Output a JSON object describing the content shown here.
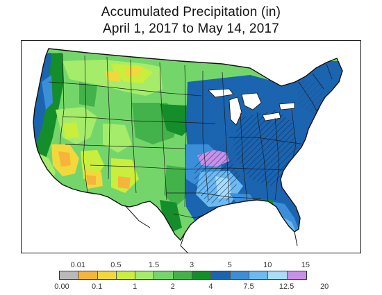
{
  "title": {
    "line1": "Accumulated Precipitation (in)",
    "line2": "April 1, 2017 to May 14, 2017"
  },
  "legend": {
    "bins": [
      {
        "color": "#b9b9b9"
      },
      {
        "color": "#f6b43c"
      },
      {
        "color": "#f3d83c"
      },
      {
        "color": "#c9ee3c"
      },
      {
        "color": "#a4ec6a"
      },
      {
        "color": "#74d66a"
      },
      {
        "color": "#44b24a"
      },
      {
        "color": "#148e2a"
      },
      {
        "color": "#1a64b0"
      },
      {
        "color": "#3a8fd8"
      },
      {
        "color": "#6cbaf0"
      },
      {
        "color": "#a9dcf8"
      },
      {
        "color": "#c890e8"
      }
    ],
    "upper_ticks": [
      "0.01",
      "0.5",
      "1.5",
      "3",
      "5",
      "10",
      "15"
    ],
    "lower_ticks": [
      "0.00",
      "0.1",
      "1",
      "2",
      "4",
      "7.5",
      "12.5",
      "20"
    ]
  }
}
